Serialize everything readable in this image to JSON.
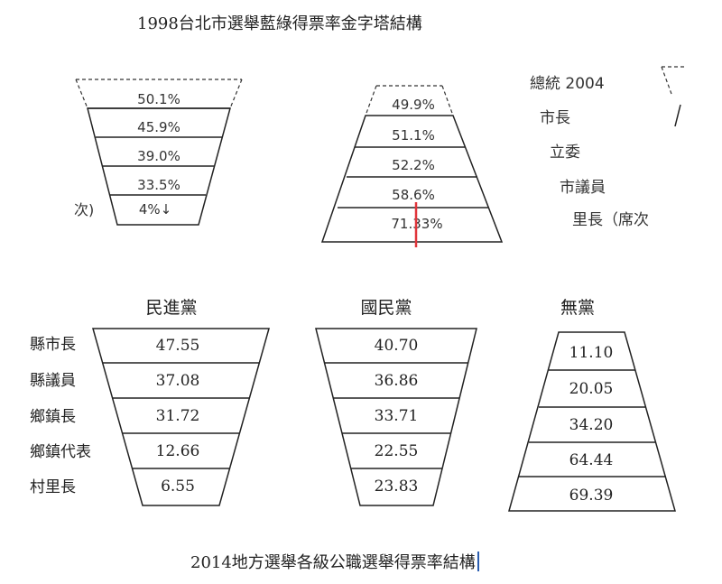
{
  "top_title": "1998台北市選舉藍綠得票率金字塔結構",
  "bottom_title": "2014地方選舉各級公職選舉得票率結構",
  "top_left_pyramid": {
    "values": [
      "50.1%",
      "45.9%",
      "39.0%",
      "33.5%",
      "4%↓"
    ],
    "side_fragment": "次)"
  },
  "top_mid_pyramid": {
    "values": [
      "49.9%",
      "51.1%",
      "52.2%",
      "58.6%",
      "71.33%"
    ]
  },
  "top_right_labels": [
    "總統 2004",
    "市長",
    "立委",
    "市議員",
    "里長（席次"
  ],
  "bottom_row_labels": [
    "縣市長",
    "縣議員",
    "鄉鎮長",
    "鄉鎮代表",
    "村里長"
  ],
  "bottom_pyramids": [
    {
      "party": "民進黨",
      "values": [
        "47.55",
        "37.08",
        "31.72",
        "12.66",
        "6.55"
      ]
    },
    {
      "party": "國民黨",
      "values": [
        "40.70",
        "36.86",
        "33.71",
        "22.55",
        "23.83"
      ]
    },
    {
      "party": "無黨",
      "values": [
        "11.10",
        "20.05",
        "34.20",
        "64.44",
        "69.39"
      ]
    }
  ],
  "colors": {
    "line": "#1a1a1a",
    "caret": "#2a5db0",
    "marker": "#e0353b"
  }
}
